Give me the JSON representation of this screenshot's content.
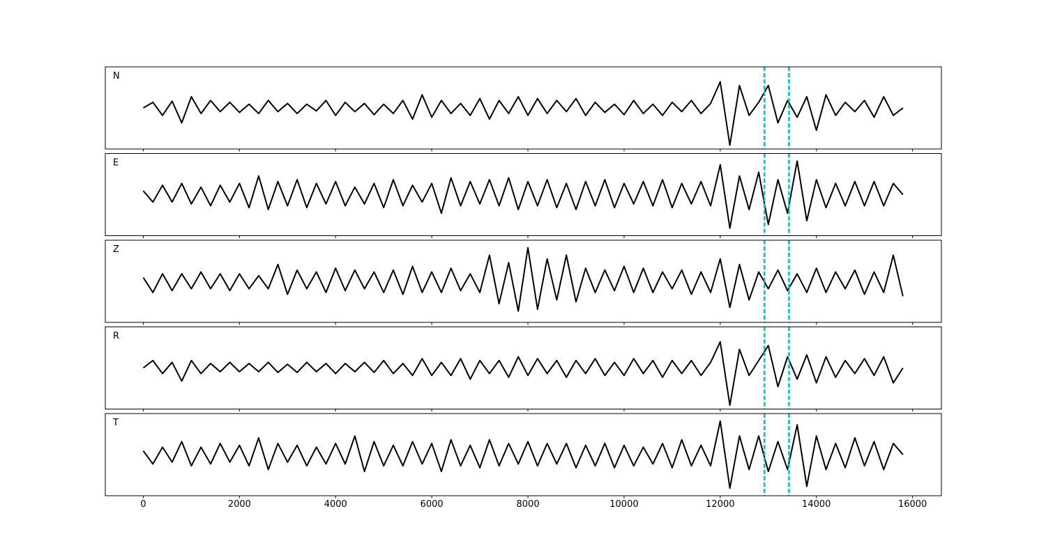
{
  "chart_data": {
    "type": "line",
    "x": [
      0,
      200,
      400,
      600,
      800,
      1000,
      1200,
      1400,
      1600,
      1800,
      2000,
      2200,
      2400,
      2600,
      2800,
      3000,
      3200,
      3400,
      3600,
      3800,
      4000,
      4200,
      4400,
      4600,
      4800,
      5000,
      5200,
      5400,
      5600,
      5800,
      6000,
      6200,
      6400,
      6600,
      6800,
      7000,
      7200,
      7400,
      7600,
      7800,
      8000,
      8200,
      8400,
      8600,
      8800,
      9000,
      9200,
      9400,
      9600,
      9800,
      10000,
      10200,
      10400,
      10600,
      10800,
      11000,
      11200,
      11400,
      11600,
      11800,
      12000,
      12200,
      12400,
      12600,
      12800,
      13000,
      13200,
      13400,
      13600,
      13800,
      14000,
      14200,
      14400,
      14600,
      14800,
      15000,
      15200,
      15400,
      15600,
      15800
    ],
    "xlim": [
      -790,
      16600
    ],
    "xticks": [
      0,
      2000,
      4000,
      6000,
      8000,
      10000,
      12000,
      14000,
      16000
    ],
    "ylim": [
      -1.1,
      1.1
    ],
    "series": [
      {
        "name": "N",
        "color": "#000000",
        "values": [
          0,
          0.15,
          -0.2,
          0.18,
          -0.4,
          0.3,
          -0.15,
          0.2,
          -0.1,
          0.15,
          -0.12,
          0.1,
          -0.15,
          0.2,
          -0.1,
          0.12,
          -0.15,
          0.1,
          -0.08,
          0.2,
          -0.2,
          0.15,
          -0.1,
          0.12,
          -0.18,
          0.1,
          -0.15,
          0.2,
          -0.3,
          0.35,
          -0.25,
          0.2,
          -0.15,
          0.12,
          -0.2,
          0.25,
          -0.3,
          0.2,
          -0.15,
          0.3,
          -0.2,
          0.25,
          -0.15,
          0.2,
          -0.1,
          0.25,
          -0.2,
          0.15,
          -0.12,
          0.1,
          -0.18,
          0.2,
          -0.15,
          0.1,
          -0.2,
          0.15,
          -0.1,
          0.2,
          -0.15,
          0.12,
          0.7,
          -1.0,
          0.6,
          -0.2,
          0.15,
          0.6,
          -0.4,
          0.2,
          -0.25,
          0.3,
          -0.6,
          0.35,
          -0.2,
          0.15,
          -0.1,
          0.2,
          -0.25,
          0.3,
          -0.2,
          0
        ]
      },
      {
        "name": "E",
        "color": "#000000",
        "values": [
          0.1,
          -0.2,
          0.25,
          -0.2,
          0.3,
          -0.25,
          0.2,
          -0.3,
          0.25,
          -0.2,
          0.3,
          -0.35,
          0.5,
          -0.4,
          0.35,
          -0.3,
          0.4,
          -0.35,
          0.3,
          -0.25,
          0.35,
          -0.3,
          0.2,
          -0.25,
          0.3,
          -0.35,
          0.4,
          -0.3,
          0.25,
          -0.2,
          0.3,
          -0.5,
          0.45,
          -0.3,
          0.35,
          -0.25,
          0.4,
          -0.3,
          0.45,
          -0.4,
          0.35,
          -0.3,
          0.4,
          -0.35,
          0.3,
          -0.4,
          0.35,
          -0.3,
          0.4,
          -0.35,
          0.3,
          -0.25,
          0.35,
          -0.3,
          0.4,
          -0.35,
          0.3,
          -0.25,
          0.35,
          -0.3,
          0.8,
          -0.9,
          0.5,
          -0.4,
          0.6,
          -0.8,
          0.4,
          -0.5,
          0.9,
          -0.7,
          0.4,
          -0.35,
          0.3,
          -0.3,
          0.35,
          -0.3,
          0.35,
          -0.3,
          0.3,
          0
        ]
      },
      {
        "name": "Z",
        "color": "#000000",
        "values": [
          0.1,
          -0.3,
          0.2,
          -0.25,
          0.2,
          -0.2,
          0.25,
          -0.2,
          0.2,
          -0.25,
          0.2,
          -0.2,
          0.15,
          -0.2,
          0.45,
          -0.35,
          0.3,
          -0.2,
          0.25,
          -0.3,
          0.35,
          -0.25,
          0.3,
          -0.2,
          0.25,
          -0.3,
          0.3,
          -0.35,
          0.4,
          -0.3,
          0.25,
          -0.3,
          0.35,
          -0.25,
          0.2,
          -0.3,
          0.7,
          -0.6,
          0.5,
          -0.8,
          0.9,
          -0.75,
          0.6,
          -0.5,
          0.7,
          -0.55,
          0.35,
          -0.3,
          0.3,
          -0.25,
          0.4,
          -0.3,
          0.35,
          -0.3,
          0.25,
          -0.2,
          0.3,
          -0.35,
          0.25,
          -0.3,
          0.6,
          -0.7,
          0.45,
          -0.5,
          0.25,
          -0.2,
          0.3,
          -0.25,
          0.2,
          -0.3,
          0.35,
          -0.3,
          0.25,
          -0.2,
          0.3,
          -0.35,
          0.25,
          -0.3,
          0.7,
          -0.4
        ]
      },
      {
        "name": "R",
        "color": "#000000",
        "values": [
          0,
          0.2,
          -0.15,
          0.15,
          -0.35,
          0.2,
          -0.15,
          0.12,
          -0.1,
          0.15,
          -0.1,
          0.12,
          -0.1,
          0.15,
          -0.12,
          0.1,
          -0.12,
          0.15,
          -0.1,
          0.12,
          -0.15,
          0.12,
          -0.1,
          0.15,
          -0.12,
          0.2,
          -0.15,
          0.12,
          -0.2,
          0.25,
          -0.2,
          0.15,
          -0.2,
          0.25,
          -0.3,
          0.2,
          -0.15,
          0.2,
          -0.25,
          0.3,
          -0.2,
          0.25,
          -0.15,
          0.2,
          -0.25,
          0.2,
          -0.15,
          0.25,
          -0.2,
          0.15,
          -0.2,
          0.25,
          -0.15,
          0.2,
          -0.25,
          0.2,
          -0.15,
          0.2,
          -0.2,
          0.15,
          0.7,
          -1.0,
          0.5,
          -0.2,
          0.2,
          0.6,
          -0.5,
          0.3,
          -0.3,
          0.35,
          -0.4,
          0.3,
          -0.25,
          0.2,
          -0.15,
          0.25,
          -0.2,
          0.3,
          -0.4,
          0
        ]
      },
      {
        "name": "T",
        "color": "#000000",
        "values": [
          0.1,
          -0.25,
          0.2,
          -0.2,
          0.35,
          -0.3,
          0.2,
          -0.25,
          0.3,
          -0.2,
          0.25,
          -0.3,
          0.45,
          -0.4,
          0.3,
          -0.2,
          0.25,
          -0.3,
          0.2,
          -0.25,
          0.3,
          -0.25,
          0.5,
          -0.45,
          0.35,
          -0.3,
          0.25,
          -0.3,
          0.35,
          -0.25,
          0.3,
          -0.45,
          0.4,
          -0.3,
          0.25,
          -0.35,
          0.4,
          -0.3,
          0.3,
          -0.25,
          0.35,
          -0.3,
          0.3,
          -0.25,
          0.3,
          -0.35,
          0.25,
          -0.3,
          0.3,
          -0.35,
          0.25,
          -0.3,
          0.2,
          -0.25,
          0.3,
          -0.35,
          0.4,
          -0.3,
          0.25,
          -0.3,
          0.9,
          -0.9,
          0.5,
          -0.4,
          0.5,
          -0.45,
          0.35,
          -0.4,
          0.8,
          -0.85,
          0.5,
          -0.4,
          0.3,
          -0.35,
          0.45,
          -0.3,
          0.35,
          -0.4,
          0.3,
          0
        ]
      }
    ],
    "markers": [
      12920,
      13430
    ],
    "marker_color": "#00bfbf"
  }
}
